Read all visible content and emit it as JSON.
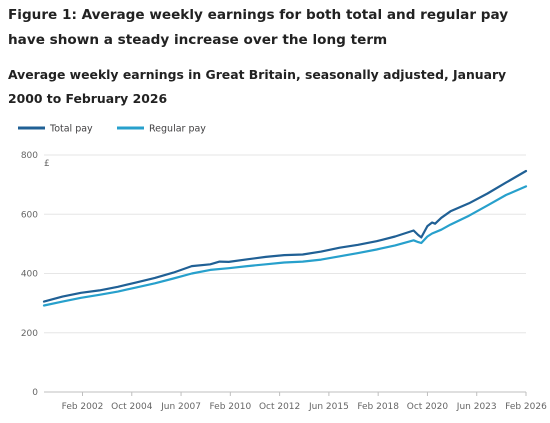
{
  "figure": {
    "title": "Figure 1: Average weekly earnings for both total and regular pay have shown a steady increase over the long term",
    "subtitle": "Average weekly earnings in Great Britain, seasonally adjusted, January 2000 to February 2026"
  },
  "chart_data": {
    "type": "line",
    "title": "Average weekly earnings in Great Britain, seasonally adjusted, January 2000 to February 2026",
    "xlabel": "",
    "ylabel": "£",
    "ylim": [
      0,
      800
    ],
    "yticks": [
      0,
      200,
      400,
      600,
      800
    ],
    "xlim": [
      "Jan 2000",
      "Feb 2026"
    ],
    "xticks": [
      "Feb 2002",
      "Oct 2004",
      "Jun 2007",
      "Feb 2010",
      "Oct 2012",
      "Jun 2015",
      "Feb 2018",
      "Oct 2020",
      "Jun 2023",
      "Feb 2026"
    ],
    "grid": "horizontal",
    "legend_position": "top-left",
    "series": [
      {
        "name": "Total pay",
        "color": "#206095",
        "points": [
          [
            "Jan 2000",
            305
          ],
          [
            "Jan 2001",
            322
          ],
          [
            "Jan 2002",
            335
          ],
          [
            "Jan 2003",
            343
          ],
          [
            "Jan 2004",
            355
          ],
          [
            "Jan 2005",
            370
          ],
          [
            "Jan 2006",
            385
          ],
          [
            "Jan 2007",
            403
          ],
          [
            "Jan 2008",
            425
          ],
          [
            "Jan 2009",
            431
          ],
          [
            "Jul 2009",
            440
          ],
          [
            "Jan 2010",
            439
          ],
          [
            "Jan 2011",
            448
          ],
          [
            "Jan 2012",
            456
          ],
          [
            "Jan 2013",
            462
          ],
          [
            "Jan 2014",
            464
          ],
          [
            "Jan 2015",
            474
          ],
          [
            "Jan 2016",
            487
          ],
          [
            "Jan 2017",
            497
          ],
          [
            "Jan 2018",
            509
          ],
          [
            "Jan 2019",
            525
          ],
          [
            "Jan 2020",
            545
          ],
          [
            "Apr 2020",
            530
          ],
          [
            "Jun 2020",
            522
          ],
          [
            "Oct 2020",
            560
          ],
          [
            "Jan 2021",
            572
          ],
          [
            "Mar 2021",
            568
          ],
          [
            "Jul 2021",
            588
          ],
          [
            "Jan 2022",
            610
          ],
          [
            "Jan 2023",
            637
          ],
          [
            "Jan 2024",
            670
          ],
          [
            "Jan 2025",
            707
          ],
          [
            "Feb 2026",
            746
          ]
        ]
      },
      {
        "name": "Regular pay",
        "color": "#27a0cc",
        "points": [
          [
            "Jan 2000",
            292
          ],
          [
            "Jan 2001",
            305
          ],
          [
            "Jan 2002",
            318
          ],
          [
            "Jan 2003",
            328
          ],
          [
            "Jan 2004",
            339
          ],
          [
            "Jan 2005",
            353
          ],
          [
            "Jan 2006",
            367
          ],
          [
            "Jan 2007",
            383
          ],
          [
            "Jan 2008",
            400
          ],
          [
            "Jan 2009",
            412
          ],
          [
            "Jan 2010",
            418
          ],
          [
            "Jan 2011",
            425
          ],
          [
            "Jan 2012",
            431
          ],
          [
            "Jan 2013",
            437
          ],
          [
            "Jan 2014",
            440
          ],
          [
            "Jan 2015",
            447
          ],
          [
            "Jan 2016",
            458
          ],
          [
            "Jan 2017",
            469
          ],
          [
            "Jan 2018",
            481
          ],
          [
            "Jan 2019",
            495
          ],
          [
            "Jan 2020",
            512
          ],
          [
            "Apr 2020",
            506
          ],
          [
            "Jun 2020",
            503
          ],
          [
            "Oct 2020",
            525
          ],
          [
            "Jan 2021",
            535
          ],
          [
            "Jul 2021",
            548
          ],
          [
            "Jan 2022",
            565
          ],
          [
            "Jan 2023",
            595
          ],
          [
            "Jan 2024",
            630
          ],
          [
            "Jan 2025",
            665
          ],
          [
            "Feb 2026",
            694
          ]
        ]
      }
    ]
  }
}
